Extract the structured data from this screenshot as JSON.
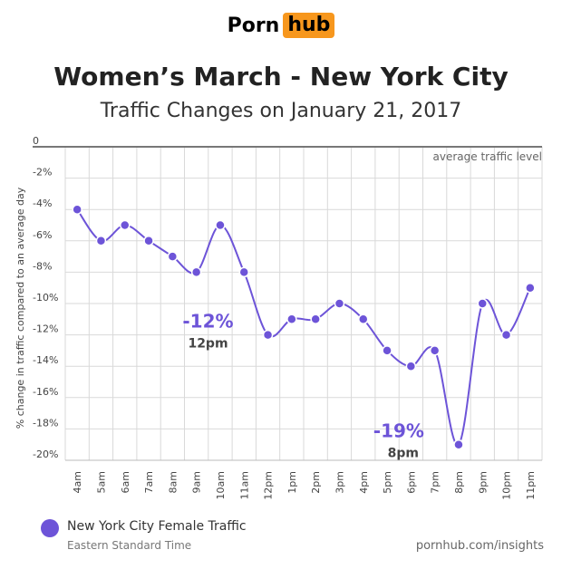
{
  "brand": {
    "part1": "Porn",
    "part2": "hub",
    "accent": "#f7971d"
  },
  "chart_data": {
    "type": "line",
    "title": "Women’s March - New York City",
    "subtitle": "Traffic Changes on January 21, 2017",
    "ylabel": "% change in traffic compared to an average day",
    "xlabel": "",
    "ylim": [
      -20,
      0
    ],
    "yticks": [
      0,
      -2,
      -4,
      -6,
      -8,
      -10,
      -12,
      -14,
      -16,
      -18,
      -20
    ],
    "ytick_labels": [
      "0",
      "-2%",
      "-4%",
      "-6%",
      "-8%",
      "-10%",
      "-12%",
      "-14%",
      "-16%",
      "-18%",
      "-20%"
    ],
    "categories": [
      "4am",
      "5am",
      "6am",
      "7am",
      "8am",
      "9am",
      "10am",
      "11am",
      "12pm",
      "1pm",
      "2pm",
      "3pm",
      "4pm",
      "5pm",
      "6pm",
      "7pm",
      "8pm",
      "9pm",
      "10pm",
      "11pm"
    ],
    "series": [
      {
        "name": "New York City Female Traffic",
        "color": "#6d54d8",
        "values": [
          -4,
          -6,
          -5,
          -6,
          -7,
          -8,
          -5,
          -8,
          -12,
          -11,
          -11,
          -10,
          -11,
          -13,
          -14,
          -13,
          -19,
          -10,
          -12,
          -9
        ]
      }
    ],
    "reference_label": "average traffic level",
    "annotations": [
      {
        "value_text": "-12%",
        "time_text": "12pm",
        "category": "12pm"
      },
      {
        "value_text": "-19%",
        "time_text": "8pm",
        "category": "8pm"
      }
    ],
    "grid": true
  },
  "legend": {
    "label": "New York City Female Traffic",
    "sublabel": "Eastern Standard Time"
  },
  "source": "pornhub.com/insights"
}
